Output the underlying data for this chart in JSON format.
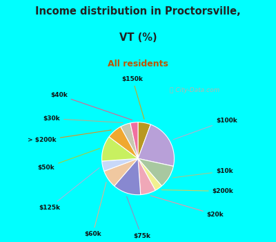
{
  "title_line1": "Income distribution in Proctorsville,",
  "title_line2": "VT (%)",
  "subtitle": "All residents",
  "bg_outer": "#00FFFF",
  "bg_chart": "#dff5ea",
  "title_color": "#222222",
  "subtitle_color": "#bb5500",
  "label_color": "#111111",
  "watermark": "ⓘ City-Data.com",
  "watermark_color": "#b0b8b0",
  "slices": [
    {
      "label": "$150k",
      "value": 5,
      "color": "#b89820"
    },
    {
      "label": "$100k",
      "value": 20,
      "color": "#b8a0d8"
    },
    {
      "label": "$10k",
      "value": 9,
      "color": "#a8c8a0"
    },
    {
      "label": "$200k",
      "value": 3,
      "color": "#f0f090"
    },
    {
      "label": "$20k",
      "value": 6,
      "color": "#f0a8b8"
    },
    {
      "label": "$75k",
      "value": 11,
      "color": "#8888d0"
    },
    {
      "label": "$60k",
      "value": 7,
      "color": "#f0c8a0"
    },
    {
      "label": "$125k",
      "value": 4,
      "color": "#c8d8f8"
    },
    {
      "label": "$50k",
      "value": 10,
      "color": "#c8f060"
    },
    {
      "label": "> $200k",
      "value": 6,
      "color": "#f0a830"
    },
    {
      "label": "$30k",
      "value": 4,
      "color": "#c8c8b0"
    },
    {
      "label": "$40k",
      "value": 3,
      "color": "#f070a0"
    }
  ],
  "label_line_colors": {
    "$150k": "#c8a820",
    "$100k": "#b0b0d0",
    "$10k": "#a0c890",
    "$200k": "#d0d060",
    "$20k": "#f090a8",
    "$75k": "#9090c0",
    "$60k": "#e0b090",
    "$125k": "#a0b8e0",
    "$50k": "#a0d040",
    "> $200k": "#e09020",
    "$30k": "#b0b090",
    "$40k": "#e06090"
  }
}
